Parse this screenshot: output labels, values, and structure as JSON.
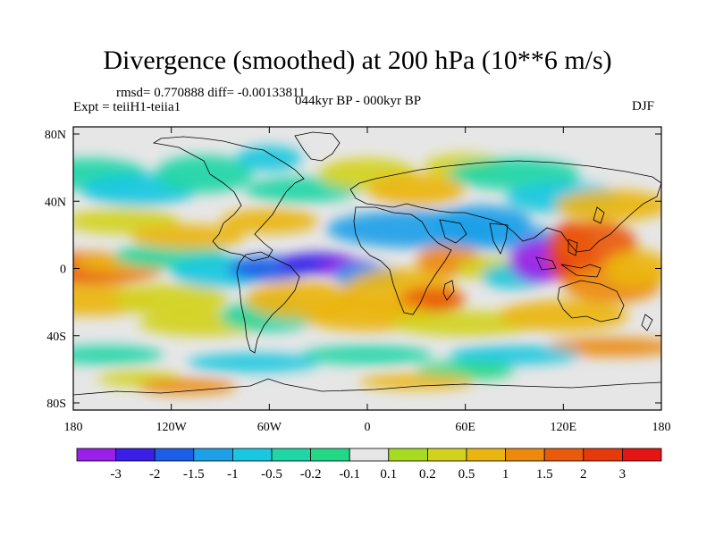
{
  "title": "Divergence (smoothed) at 200 hPa (10**6 m/s)",
  "stats_text": "rmsd= 0.770888 diff= -0.00133811",
  "experiment_text": "Expt = teiiH1-teiia1",
  "period_text": "044kyr BP - 000kyr BP",
  "season_text": "DJF",
  "chart_data": {
    "type": "heatmap",
    "x_ticks": [
      "180",
      "120W",
      "60W",
      "0",
      "60E",
      "120E",
      "180"
    ],
    "y_ticks": [
      "80N",
      "40N",
      "0",
      "40S",
      "80S"
    ],
    "x_range": [
      -180,
      180
    ],
    "y_range": [
      -90,
      90
    ],
    "colorbar": {
      "colors": [
        "#9a1fe8",
        "#3b1ee8",
        "#1d5ee8",
        "#1ea0e8",
        "#19c8e0",
        "#1ed6a6",
        "#23d884",
        "#e6e6e6",
        "#a6db22",
        "#d2d21c",
        "#ebb511",
        "#ed8a0d",
        "#ea5a0c",
        "#e63a0a",
        "#e61414"
      ],
      "labels": [
        "-3",
        "-2",
        "-1.5",
        "-1",
        "-0.5",
        "-0.2",
        "-0.1",
        "0.1",
        "0.2",
        "0.5",
        "1",
        "1.5",
        "2",
        "3"
      ]
    }
  }
}
